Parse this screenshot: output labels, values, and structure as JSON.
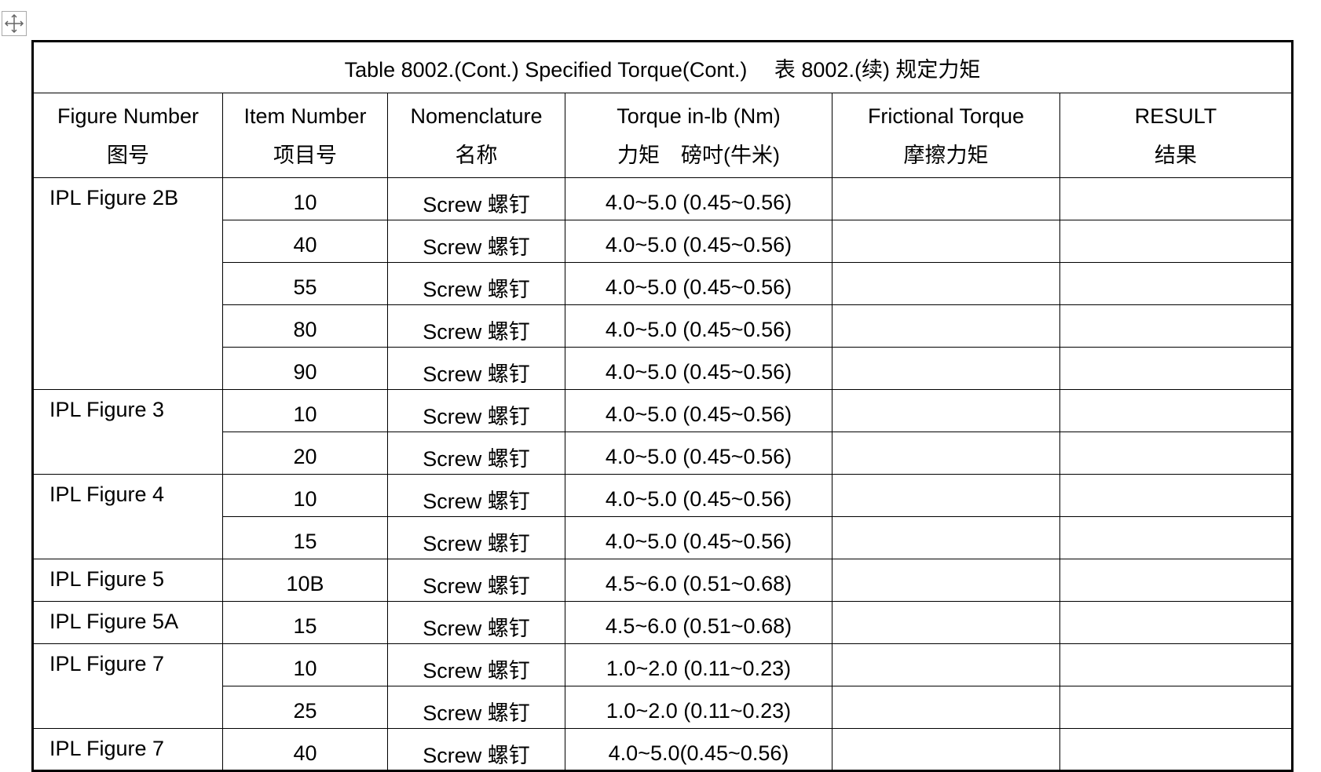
{
  "table": {
    "title": "Table 8002.(Cont.) Specified Torque(Cont.)　 表 8002.(续) 规定力矩",
    "headers": [
      [
        "Figure Number",
        "图号"
      ],
      [
        "Item Number",
        "项目号"
      ],
      [
        "Nomenclature",
        "名称"
      ],
      [
        "Torque in-lb (Nm)",
        "力矩　磅吋(牛米)"
      ],
      [
        "Frictional Torque",
        "摩擦力矩"
      ],
      [
        "RESULT",
        "结果"
      ]
    ],
    "groups": [
      {
        "figure": "IPL Figure 2B",
        "items": [
          {
            "item": "10",
            "nomenclature": "Screw 螺钉",
            "torque": "4.0~5.0 (0.45~0.56)"
          },
          {
            "item": "40",
            "nomenclature": "Screw 螺钉",
            "torque": "4.0~5.0 (0.45~0.56)"
          },
          {
            "item": "55",
            "nomenclature": "Screw 螺钉",
            "torque": "4.0~5.0 (0.45~0.56)"
          },
          {
            "item": "80",
            "nomenclature": "Screw 螺钉",
            "torque": "4.0~5.0 (0.45~0.56)"
          },
          {
            "item": "90",
            "nomenclature": "Screw 螺钉",
            "torque": "4.0~5.0 (0.45~0.56)"
          }
        ]
      },
      {
        "figure": "IPL Figure 3",
        "items": [
          {
            "item": "10",
            "nomenclature": "Screw 螺钉",
            "torque": "4.0~5.0 (0.45~0.56)"
          },
          {
            "item": "20",
            "nomenclature": "Screw 螺钉",
            "torque": "4.0~5.0 (0.45~0.56)"
          }
        ]
      },
      {
        "figure": "IPL Figure 4",
        "items": [
          {
            "item": "10",
            "nomenclature": "Screw 螺钉",
            "torque": "4.0~5.0 (0.45~0.56)"
          },
          {
            "item": "15",
            "nomenclature": "Screw 螺钉",
            "torque": "4.0~5.0 (0.45~0.56)"
          }
        ]
      },
      {
        "figure": "IPL Figure 5",
        "items": [
          {
            "item": "10B",
            "nomenclature": "Screw 螺钉",
            "torque": "4.5~6.0 (0.51~0.68)"
          }
        ]
      },
      {
        "figure": "IPL Figure 5A",
        "items": [
          {
            "item": "15",
            "nomenclature": "Screw 螺钉",
            "torque": "4.5~6.0 (0.51~0.68)"
          }
        ]
      },
      {
        "figure": "IPL Figure 7",
        "items": [
          {
            "item": "10",
            "nomenclature": "Screw 螺钉",
            "torque": "1.0~2.0 (0.11~0.23)"
          },
          {
            "item": "25",
            "nomenclature": "Screw 螺钉",
            "torque": "1.0~2.0 (0.11~0.23)"
          }
        ]
      },
      {
        "figure": "IPL Figure 7",
        "items": [
          {
            "item": "40",
            "nomenclature": "Screw 螺钉",
            "torque": "4.0~5.0(0.45~0.56)"
          }
        ]
      }
    ]
  }
}
